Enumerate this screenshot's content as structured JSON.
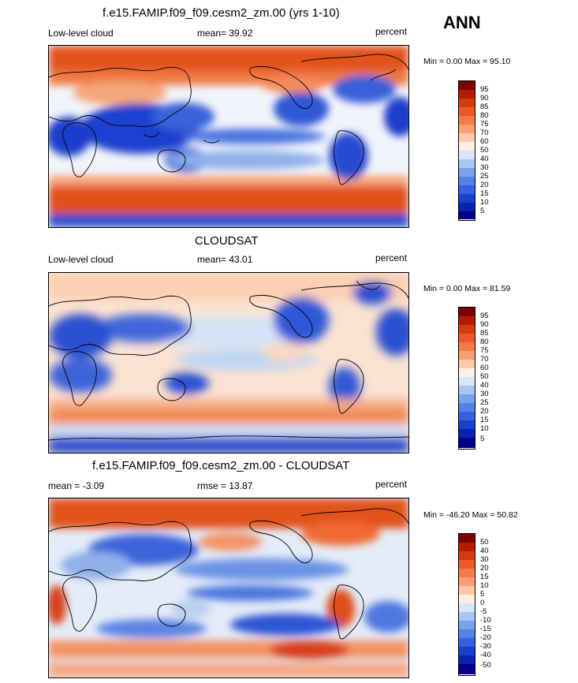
{
  "season": "ANN",
  "panels": [
    {
      "title": "f.e15.FAMIP.f09_f09.cesm2_zm.00 (yrs 1-10)",
      "left_label": "Low-level cloud",
      "center_label": "mean=  39.92",
      "right_label": "percent",
      "minmax": "Min =   0.00 Max =  95.10",
      "levels": [
        "95",
        "90",
        "85",
        "80",
        "75",
        "70",
        "60",
        "50",
        "40",
        "30",
        "25",
        "20",
        "15",
        "10",
        "5"
      ]
    },
    {
      "title": "CLOUDSAT",
      "left_label": "Low-level cloud",
      "center_label": "mean=  43.01",
      "right_label": "percent",
      "minmax": "Min =   0.00 Max =  81.59",
      "levels": [
        "95",
        "90",
        "85",
        "80",
        "75",
        "70",
        "60",
        "50",
        "40",
        "30",
        "25",
        "20",
        "15",
        "10",
        "5"
      ]
    },
    {
      "title": "f.e15.FAMIP.f09_f09.cesm2_zm.00 - CLOUDSAT",
      "left_label": "mean =  -3.09",
      "center_label": "rmse =  13.87",
      "right_label": "percent",
      "minmax": "Min = -46.20 Max =  50.82",
      "levels": [
        "50",
        "40",
        "30",
        "20",
        "15",
        "10",
        "5",
        "0",
        "-5",
        "-10",
        "-15",
        "-20",
        "-30",
        "-40",
        "-50"
      ]
    }
  ],
  "colorbar_colors": [
    "#800000",
    "#b01c00",
    "#d83a10",
    "#ef5828",
    "#f57a4a",
    "#f99e75",
    "#fcc9a9",
    "#fdf0e2",
    "#d8e5f6",
    "#a9c6f0",
    "#7aa2ea",
    "#5580e5",
    "#3560df",
    "#1840d0",
    "#0a20b0",
    "#00008a"
  ]
}
